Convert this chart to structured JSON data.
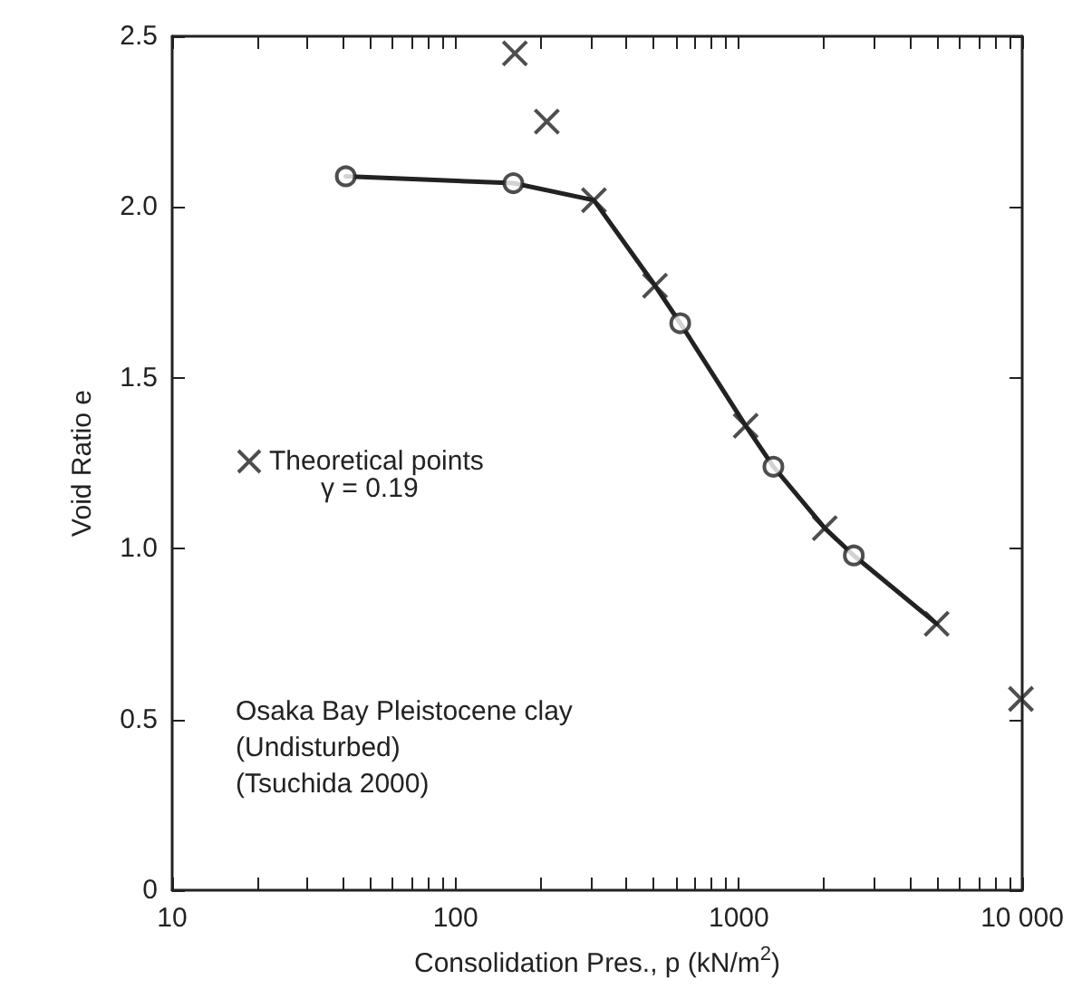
{
  "chart_data": {
    "type": "scatter",
    "xlabel": "Consolidation Pres., p (kN/m$^{2}$)",
    "ylabel": "Void Ratio e",
    "log": "x",
    "xlim": [
      10,
      10000
    ],
    "ylim": [
      0,
      2.5
    ],
    "xticks": [
      10,
      {
        "value": 20,
        "label": null
      },
      {
        "value": 30,
        "label": null
      },
      {
        "value": 40,
        "label": null
      },
      {
        "value": 50,
        "label": null
      },
      {
        "value": 60,
        "label": null
      },
      {
        "value": 70,
        "label": null
      },
      {
        "value": 80,
        "label": null
      },
      {
        "value": 90,
        "label": null
      },
      100,
      {
        "value": 200,
        "label": null
      },
      {
        "value": 300,
        "label": null
      },
      {
        "value": 400,
        "label": null
      },
      {
        "value": 500,
        "label": null
      },
      {
        "value": 600,
        "label": null
      },
      {
        "value": 700,
        "label": null
      },
      {
        "value": 800,
        "label": null
      },
      {
        "value": 900,
        "label": null
      },
      1000,
      {
        "value": 2000,
        "label": null
      },
      {
        "value": 3000,
        "label": null
      },
      {
        "value": 4000,
        "label": null
      },
      {
        "value": 5000,
        "label": null
      },
      {
        "value": 6000,
        "label": null
      },
      {
        "value": 7000,
        "label": null
      },
      {
        "value": 8000,
        "label": null
      },
      {
        "value": 9000,
        "label": null
      },
      {
        "value": 10000,
        "label": "10 000"
      }
    ],
    "yticks": [
      0,
      0.5,
      {
        "value": 1,
        "label": "1.0"
      },
      1.5,
      {
        "value": 2,
        "label": "2.0"
      },
      2.5
    ],
    "grid": false,
    "legend": "left",
    "series": [
      {
        "type": "line",
        "color": "#222222",
        "marker": "none",
        "line_style": "solid",
        "x": [
          41,
          160,
          308,
          506,
          621,
          1057,
          1324,
          2010,
          2545,
          4990
        ],
        "values": [
          2.09,
          2.07,
          2.02,
          1.77,
          1.66,
          1.36,
          1.24,
          1.06,
          0.98,
          0.78
        ]
      },
      {
        "color": "#222222",
        "marker": "circle",
        "x": [
          41,
          160,
          621,
          1324,
          2545
        ],
        "values": [
          2.09,
          2.07,
          1.66,
          1.24,
          0.98
        ]
      },
      {
        "name": "Theoretical points",
        "color": "#222222",
        "marker": "cross",
        "x": [
          162,
          210,
          308,
          506,
          1057,
          2010,
          4990,
          9900
        ],
        "values": [
          2.45,
          2.25,
          2.02,
          1.77,
          1.36,
          1.06,
          0.78,
          0.56
        ]
      }
    ],
    "annotations": [
      "γ = 0.19",
      "Osaka Bay Pleistocene clay",
      "(Undisturbed)",
      "(Tsuchida 2000)"
    ]
  }
}
